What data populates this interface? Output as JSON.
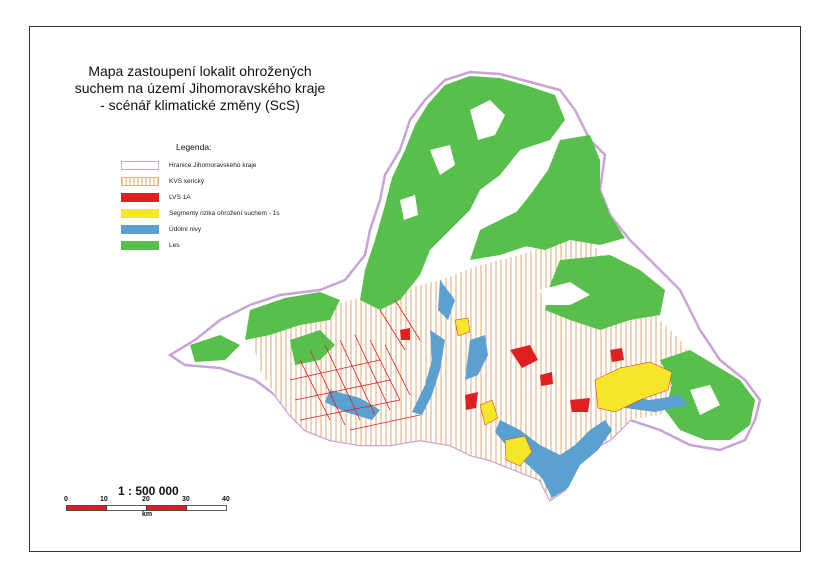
{
  "map": {
    "title_lines": [
      "Mapa zastoupení lokalit ohrožených",
      "suchem na území Jihomoravského kraje",
      "- scénář klimatické změny (ScS)"
    ]
  },
  "legend": {
    "title": "Legenda:",
    "items": [
      {
        "label": "Hranice Jihomoravského kraje",
        "icon": "outline-swatch",
        "color": "#c9a3d6"
      },
      {
        "label": "KVS xerický",
        "icon": "hatched-swatch",
        "color": "#e0a060"
      },
      {
        "label": "LVS 1A",
        "icon": "solid-swatch",
        "color": "#e02020"
      },
      {
        "label": "Segmenty rizika ohrožení suchem - 1s",
        "icon": "solid-swatch",
        "color": "#f5e62a"
      },
      {
        "label": "Údolní nivy",
        "icon": "solid-swatch",
        "color": "#5aa0d0"
      },
      {
        "label": "Les",
        "icon": "solid-swatch",
        "color": "#58bf4c"
      }
    ]
  },
  "scale": {
    "ratio": "1 : 500 000",
    "ticks": [
      "0",
      "10",
      "20",
      "30",
      "40"
    ],
    "unit": "km"
  },
  "colors": {
    "forest": "#58bf4c",
    "hatch": "#e0a060",
    "lvs": "#e02020",
    "risk": "#f5e62a",
    "river": "#5aa0d0",
    "border": "#c9a3d6"
  }
}
